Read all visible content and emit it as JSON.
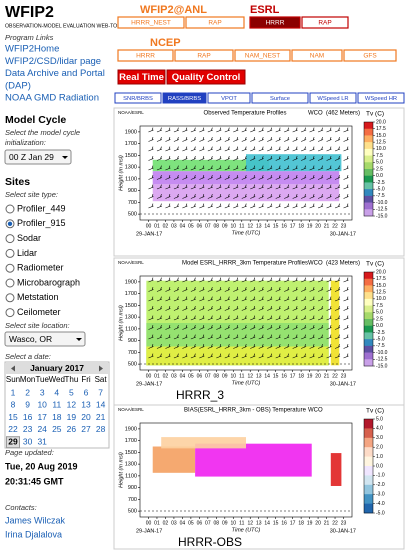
{
  "sidebar": {
    "title": "WFIP2",
    "subtitle": "OBSERVATION-MODEL EVALUATION WEB-TOOL",
    "links_heading": "Program Links",
    "links": [
      "WFIP2Home",
      "WFIP2/CSD/lidar page",
      "Data Archive and Portal",
      "(DAP)",
      "NOAA GMD Radiation"
    ],
    "model_cycle": {
      "heading": "Model Cycle",
      "hint": [
        "Select the model cycle",
        "initialization:"
      ],
      "selected": "00 Z Jan 29"
    },
    "sites": {
      "heading": "Sites",
      "type_hint": "Select site type:",
      "types": [
        "Profiler_449",
        "Profiler_915",
        "Sodar",
        "Lidar",
        "Radiometer",
        "Microbarograph",
        "Metstation",
        "Ceilometer"
      ],
      "checked": 1,
      "location_hint": "Select site location:",
      "location": "Wasco, OR"
    },
    "calendar": {
      "hint": "Select a date:",
      "month": "January 2017",
      "weekdays": [
        "Sun",
        "Mon",
        "Tue",
        "Wed",
        "Thu",
        "Fri",
        "Sat"
      ],
      "days": [
        1,
        2,
        3,
        4,
        5,
        6,
        7,
        8,
        9,
        10,
        11,
        12,
        13,
        14,
        15,
        16,
        17,
        18,
        19,
        20,
        21,
        22,
        23,
        24,
        25,
        26,
        27,
        28,
        29,
        30,
        31
      ],
      "first_weekday": 0,
      "selected_day": 29
    },
    "updated": {
      "label": "Page updated:",
      "date": "Tue, 20 Aug 2019",
      "time": "20:31:45 GMT"
    },
    "contacts": {
      "label": "Contacts:",
      "names": [
        "James Wilczak",
        "Irina Djalalova"
      ]
    }
  },
  "nav": {
    "groups": [
      {
        "title": "WFIP2@ANL",
        "buttons": [
          "HRRR_NEST",
          "RAP"
        ]
      },
      {
        "title": "ESRL",
        "buttons": [
          "HRRR",
          "RAP"
        ],
        "active": 0
      },
      {
        "title": "NCEP",
        "buttons": [
          "HRRR",
          "RAP",
          "NAM_NEST",
          "NAM",
          "GFS"
        ]
      }
    ],
    "modes": [
      "Real Time",
      "Quality Control"
    ],
    "products": [
      "SNR/BRBS",
      "RASS/BRBS",
      "VPOT",
      "Surface",
      "WSpeed LR",
      "WSpeed HR"
    ],
    "active_product": 1
  },
  "panels": [
    {
      "org": "NOAA/ESRL",
      "title": "Observed Temperature Profiles",
      "site": "WCO",
      "height_note": "(462 Meters)",
      "ylabel": "Height (m msl)",
      "xlabel": "Time (UTC)",
      "start_date": "29-JAN-17",
      "end_date": "30-JAN-17",
      "cbar_label": "Tv (C)",
      "ylim": [
        400,
        2000
      ],
      "yticks": [
        500,
        700,
        900,
        1100,
        1300,
        1500,
        1700,
        1900
      ],
      "hours": [
        "00",
        "01",
        "02",
        "03",
        "04",
        "05",
        "06",
        "07",
        "08",
        "09",
        "10",
        "11",
        "12",
        "13",
        "14",
        "15",
        "16",
        "17",
        "18",
        "19",
        "20",
        "21",
        "22",
        "23"
      ],
      "clim": [
        -15,
        20
      ],
      "cticks": [
        {
          "value": 20,
          "label": "20.0"
        },
        17.5,
        {
          "value": 15,
          "label": "15.0"
        },
        12.5,
        {
          "value": 10,
          "label": "10.0"
        },
        7.5,
        {
          "value": 5,
          "label": "5.0"
        },
        2.5,
        {
          "value": 0,
          "label": "0.0"
        },
        -2.5,
        {
          "value": -5,
          "label": "-5.0"
        },
        -7.5,
        {
          "value": -10,
          "label": "-10.0"
        },
        -12.5,
        {
          "value": -15,
          "label": "-15.0"
        }
      ]
    },
    {
      "org": "NOAA/ESRL",
      "title": "Model ESRL_HRRR_3km Temperature Profiles",
      "site": "WCO",
      "height_note": "(423 Meters)",
      "ylabel": "Height (m msl)",
      "xlabel": "Time (UTC)",
      "start_date": "29-JAN-17",
      "end_date": "30-JAN-17",
      "cbar_label": "Tv (C)",
      "caption": "HRRR_3",
      "ylim": [
        400,
        2000
      ],
      "yticks": [
        500,
        700,
        900,
        1100,
        1300,
        1500,
        1700,
        1900
      ],
      "hours": [
        "00",
        "01",
        "02",
        "03",
        "04",
        "05",
        "06",
        "07",
        "08",
        "09",
        "10",
        "11",
        "12",
        "13",
        "14",
        "15",
        "16",
        "17",
        "18",
        "19",
        "20",
        "21",
        "22",
        "23"
      ],
      "clim": [
        -15,
        20
      ],
      "cticks": [
        {
          "value": 20,
          "label": "20.0"
        },
        17.5,
        {
          "value": 15,
          "label": "15.0"
        },
        12.5,
        {
          "value": 10,
          "label": "10.0"
        },
        7.5,
        {
          "value": 5,
          "label": "5.0"
        },
        2.5,
        {
          "value": 0,
          "label": "0.0"
        },
        -2.5,
        {
          "value": -5,
          "label": "-5.0"
        },
        -7.5,
        {
          "value": -10,
          "label": "-10.0"
        },
        -12.5,
        {
          "value": -15,
          "label": "-15.0"
        }
      ]
    },
    {
      "org": "NOAA/ESRL",
      "title": "BIAS(ESRL_HRRR_3km - OBS) Temperature",
      "site": "WCO",
      "ylabel": "Height (m msl)",
      "xlabel": "Time (UTC)",
      "start_date": "29-JAN-17",
      "end_date": "30-JAN-17",
      "cbar_label": "Tv (C)",
      "caption": "HRRR-OBS",
      "ylim": [
        400,
        2000
      ],
      "yticks": [
        500,
        700,
        900,
        1100,
        1300,
        1500,
        1700,
        1900
      ],
      "hours": [
        "00",
        "01",
        "02",
        "03",
        "04",
        "05",
        "06",
        "07",
        "08",
        "09",
        "10",
        "11",
        "12",
        "13",
        "14",
        "15",
        "16",
        "17",
        "18",
        "19",
        "20",
        "21",
        "22",
        "23"
      ],
      "clim": [
        -5,
        5
      ],
      "cticks": [
        {
          "value": 5,
          "label": "5.0"
        },
        {
          "value": 4,
          "label": "4.0"
        },
        {
          "value": 3,
          "label": "3.0"
        },
        {
          "value": 2,
          "label": "2.0"
        },
        {
          "value": 1,
          "label": "1.0"
        },
        {
          "value": 0,
          "label": "0.0"
        },
        {
          "value": -1,
          "label": "-1.0"
        },
        {
          "value": -2,
          "label": "-2.0"
        },
        {
          "value": -3,
          "label": "-3.0"
        },
        {
          "value": -4,
          "label": "-4.0"
        },
        {
          "value": -5,
          "label": "-5.0"
        }
      ]
    }
  ]
}
